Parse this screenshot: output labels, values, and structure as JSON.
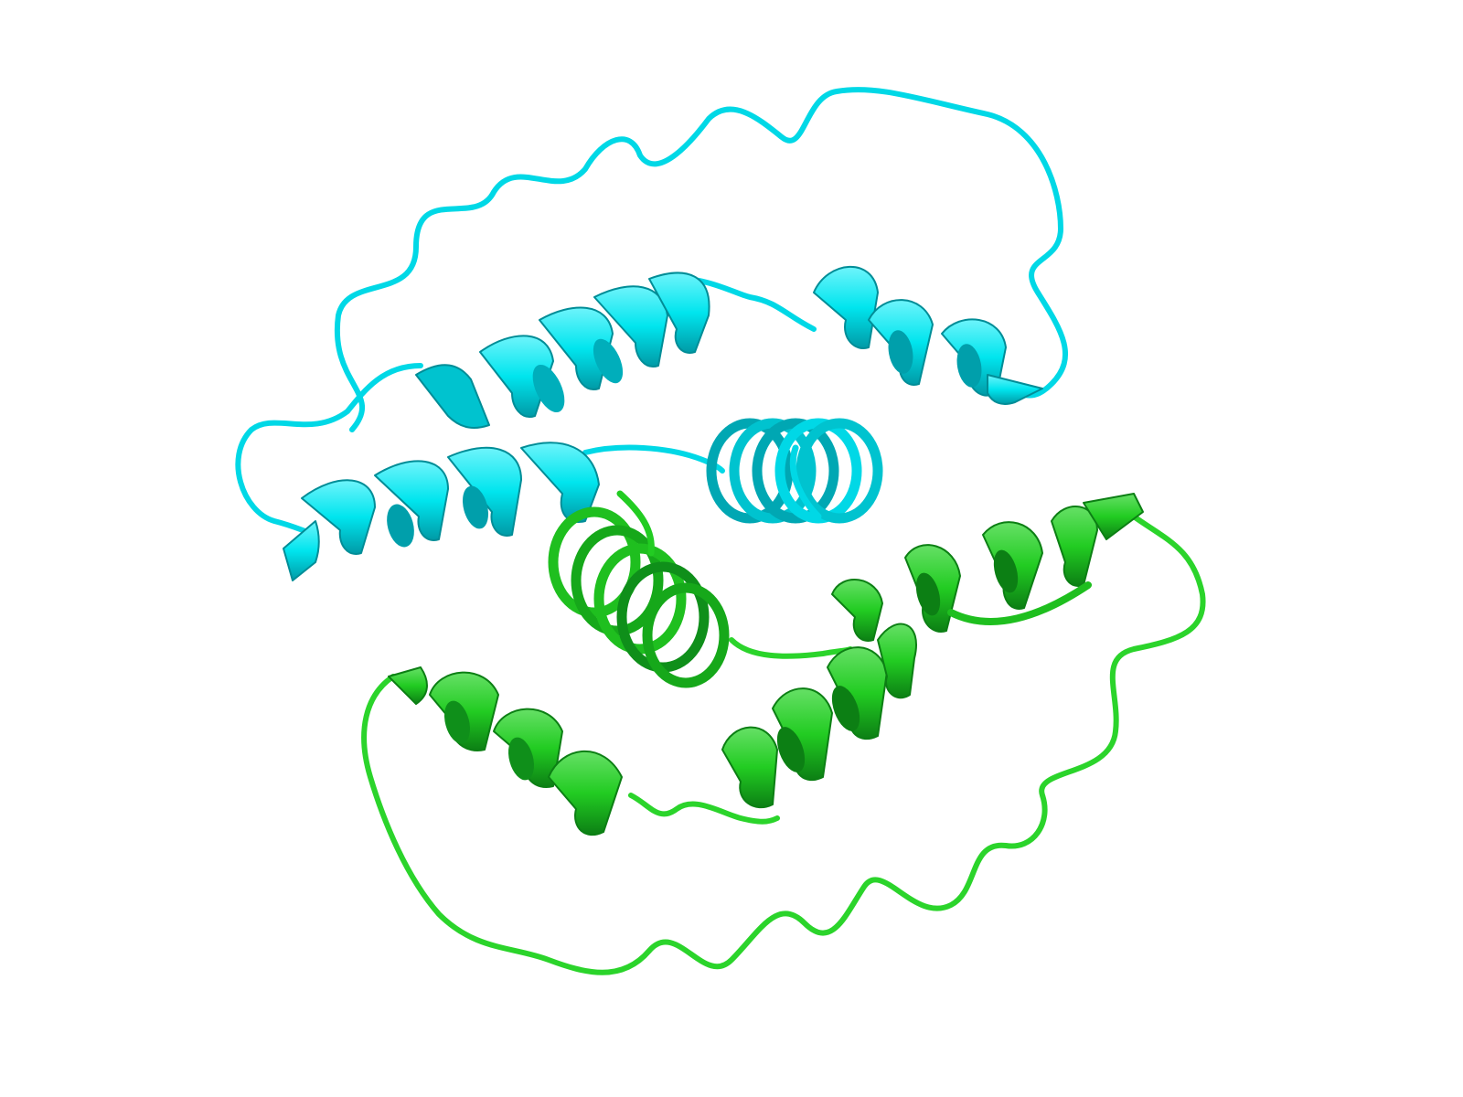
{
  "scene": {
    "background": "#ffffff",
    "representation": "cartoon",
    "chains": [
      {
        "id": "chain-1",
        "color": "#00e5ee",
        "shade": "#00a7b3",
        "light": "#6ef4fb",
        "elements": [
          "loop",
          "helix",
          "helix",
          "helix-end-on",
          "helix"
        ]
      },
      {
        "id": "chain-2",
        "color": "#22cc22",
        "shade": "#0f8f1a",
        "light": "#66e066",
        "elements": [
          "helix-end-on",
          "helix",
          "helix",
          "loop"
        ]
      }
    ]
  }
}
